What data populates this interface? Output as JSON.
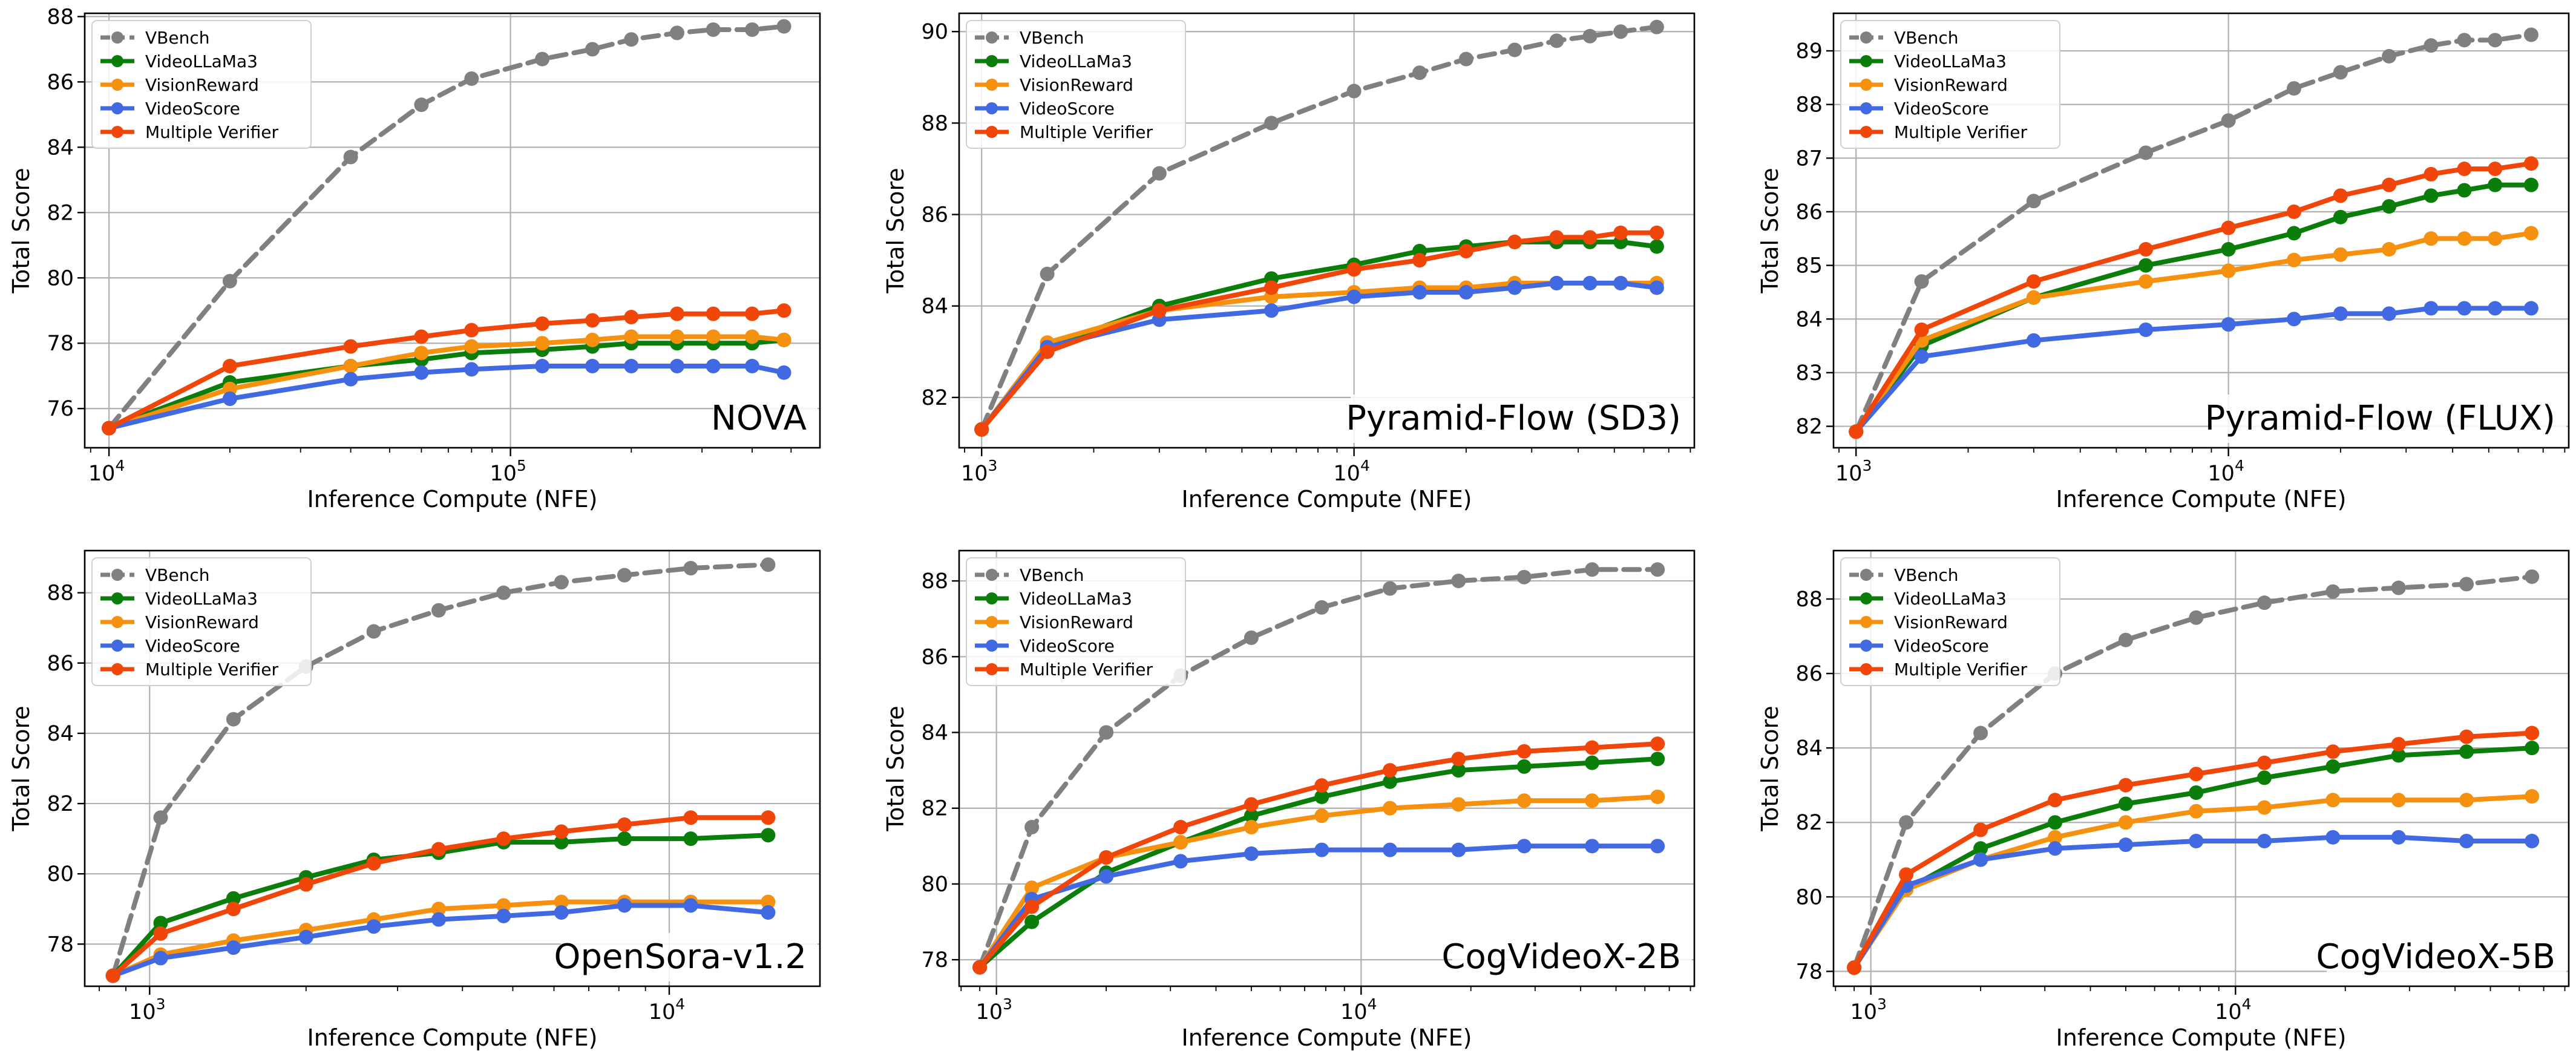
{
  "figure": {
    "legend_labels": [
      "VBench",
      "VideoLLaMa3",
      "VisionReward",
      "VideoScore",
      "Multiple Verifier"
    ],
    "xlabel": "Inference Compute (NFE)",
    "ylabel": "Total Score"
  },
  "colors": {
    "VBench": "#808080",
    "VideoLLaMa3": "#0a7d0a",
    "VisionReward": "#f5910f",
    "VideoScore": "#4169e1",
    "Multiple Verifier": "#f0460a"
  },
  "chart_data": [
    {
      "type": "line",
      "title": "NOVA",
      "xlabel": "Inference Compute (NFE)",
      "ylabel": "Total Score",
      "xscale": "log",
      "xlim": [
        8700,
        590000
      ],
      "ylim": [
        74.8,
        88.1
      ],
      "yticks": [
        76,
        78,
        80,
        82,
        84,
        86,
        88
      ],
      "xticks": [
        {
          "value": 10000,
          "base": "10",
          "exp": "4"
        },
        {
          "value": 100000,
          "base": "10",
          "exp": "5"
        }
      ],
      "legend": "top-left",
      "grid": true,
      "x": [
        10000,
        20000,
        40000,
        60000,
        80000,
        120000,
        160000,
        200000,
        260000,
        320000,
        400000,
        480000
      ],
      "series": [
        {
          "name": "VBench",
          "style": "dashed",
          "values": [
            75.4,
            79.9,
            83.7,
            85.3,
            86.1,
            86.7,
            87.0,
            87.3,
            87.5,
            87.6,
            87.6,
            87.7
          ]
        },
        {
          "name": "VideoLLaMa3",
          "values": [
            75.4,
            76.8,
            77.3,
            77.5,
            77.7,
            77.8,
            77.9,
            78.0,
            78.0,
            78.0,
            78.0,
            78.1
          ]
        },
        {
          "name": "VisionReward",
          "values": [
            75.4,
            76.6,
            77.3,
            77.7,
            77.9,
            78.0,
            78.1,
            78.2,
            78.2,
            78.2,
            78.2,
            78.1
          ]
        },
        {
          "name": "VideoScore",
          "values": [
            75.4,
            76.3,
            76.9,
            77.1,
            77.2,
            77.3,
            77.3,
            77.3,
            77.3,
            77.3,
            77.3,
            77.1
          ]
        },
        {
          "name": "Multiple Verifier",
          "values": [
            75.4,
            77.3,
            77.9,
            78.2,
            78.4,
            78.6,
            78.7,
            78.8,
            78.9,
            78.9,
            78.9,
            79.0
          ]
        }
      ]
    },
    {
      "type": "line",
      "title": "Pyramid-Flow (SD3)",
      "xlabel": "Inference Compute (NFE)",
      "ylabel": "Total Score",
      "xscale": "log",
      "xlim": [
        870,
        82000
      ],
      "ylim": [
        80.9,
        90.4
      ],
      "yticks": [
        82,
        84,
        86,
        88,
        90
      ],
      "xticks": [
        {
          "value": 1000,
          "base": "10",
          "exp": "3"
        },
        {
          "value": 10000,
          "base": "10",
          "exp": "4"
        }
      ],
      "legend": "top-left",
      "grid": true,
      "x": [
        1000,
        1500,
        3000,
        6000,
        10000,
        15000,
        20000,
        27000,
        35000,
        43000,
        52000,
        65000
      ],
      "series": [
        {
          "name": "VBench",
          "style": "dashed",
          "values": [
            81.3,
            84.7,
            86.9,
            88.0,
            88.7,
            89.1,
            89.4,
            89.6,
            89.8,
            89.9,
            90.0,
            90.1
          ]
        },
        {
          "name": "VideoLLaMa3",
          "values": [
            81.3,
            83.1,
            84.0,
            84.6,
            84.9,
            85.2,
            85.3,
            85.4,
            85.4,
            85.4,
            85.4,
            85.3
          ]
        },
        {
          "name": "VisionReward",
          "values": [
            81.3,
            83.2,
            83.9,
            84.2,
            84.3,
            84.4,
            84.4,
            84.5,
            84.5,
            84.5,
            84.5,
            84.5
          ]
        },
        {
          "name": "VideoScore",
          "values": [
            81.3,
            83.1,
            83.7,
            83.9,
            84.2,
            84.3,
            84.3,
            84.4,
            84.5,
            84.5,
            84.5,
            84.4
          ]
        },
        {
          "name": "Multiple Verifier",
          "values": [
            81.3,
            83.0,
            83.9,
            84.4,
            84.8,
            85.0,
            85.2,
            85.4,
            85.5,
            85.5,
            85.6,
            85.6
          ]
        }
      ]
    },
    {
      "type": "line",
      "title": "Pyramid-Flow (FLUX)",
      "xlabel": "Inference Compute (NFE)",
      "ylabel": "Total Score",
      "xscale": "log",
      "xlim": [
        870,
        82000
      ],
      "ylim": [
        81.6,
        89.7
      ],
      "yticks": [
        82,
        83,
        84,
        85,
        86,
        87,
        88,
        89
      ],
      "xticks": [
        {
          "value": 1000,
          "base": "10",
          "exp": "3"
        },
        {
          "value": 10000,
          "base": "10",
          "exp": "4"
        }
      ],
      "legend": "top-left",
      "grid": true,
      "x": [
        1000,
        1500,
        3000,
        6000,
        10000,
        15000,
        20000,
        27000,
        35000,
        43000,
        52000,
        65000
      ],
      "series": [
        {
          "name": "VBench",
          "style": "dashed",
          "values": [
            81.9,
            84.7,
            86.2,
            87.1,
            87.7,
            88.3,
            88.6,
            88.9,
            89.1,
            89.2,
            89.2,
            89.3
          ]
        },
        {
          "name": "VideoLLaMa3",
          "values": [
            81.9,
            83.5,
            84.4,
            85.0,
            85.3,
            85.6,
            85.9,
            86.1,
            86.3,
            86.4,
            86.5,
            86.5
          ]
        },
        {
          "name": "VisionReward",
          "values": [
            81.9,
            83.6,
            84.4,
            84.7,
            84.9,
            85.1,
            85.2,
            85.3,
            85.5,
            85.5,
            85.5,
            85.6
          ]
        },
        {
          "name": "VideoScore",
          "values": [
            81.9,
            83.3,
            83.6,
            83.8,
            83.9,
            84.0,
            84.1,
            84.1,
            84.2,
            84.2,
            84.2,
            84.2
          ]
        },
        {
          "name": "Multiple Verifier",
          "values": [
            81.9,
            83.8,
            84.7,
            85.3,
            85.7,
            86.0,
            86.3,
            86.5,
            86.7,
            86.8,
            86.8,
            86.9
          ]
        }
      ]
    },
    {
      "type": "line",
      "title": "OpenSora-v1.2",
      "xlabel": "Inference Compute (NFE)",
      "ylabel": "Total Score",
      "xscale": "log",
      "xlim": [
        750,
        19500
      ],
      "ylim": [
        76.8,
        89.2
      ],
      "yticks": [
        78,
        80,
        82,
        84,
        86,
        88
      ],
      "xticks": [
        {
          "value": 1000,
          "base": "10",
          "exp": "3"
        },
        {
          "value": 10000,
          "base": "10",
          "exp": "4"
        }
      ],
      "legend": "top-left",
      "grid": true,
      "x": [
        850,
        1050,
        1450,
        2000,
        2700,
        3600,
        4800,
        6200,
        8200,
        11000,
        15500
      ],
      "series": [
        {
          "name": "VBench",
          "style": "dashed",
          "values": [
            77.1,
            81.6,
            84.4,
            85.9,
            86.9,
            87.5,
            88.0,
            88.3,
            88.5,
            88.7,
            88.8
          ]
        },
        {
          "name": "VideoLLaMa3",
          "values": [
            77.1,
            78.6,
            79.3,
            79.9,
            80.4,
            80.6,
            80.9,
            80.9,
            81.0,
            81.0,
            81.1
          ]
        },
        {
          "name": "VisionReward",
          "values": [
            77.1,
            77.7,
            78.1,
            78.4,
            78.7,
            79.0,
            79.1,
            79.2,
            79.2,
            79.2,
            79.2
          ]
        },
        {
          "name": "VideoScore",
          "values": [
            77.1,
            77.6,
            77.9,
            78.2,
            78.5,
            78.7,
            78.8,
            78.9,
            79.1,
            79.1,
            78.9
          ]
        },
        {
          "name": "Multiple Verifier",
          "values": [
            77.1,
            78.3,
            79.0,
            79.7,
            80.3,
            80.7,
            81.0,
            81.2,
            81.4,
            81.6,
            81.6
          ]
        }
      ]
    },
    {
      "type": "line",
      "title": "CogVideoX-2B",
      "xlabel": "Inference Compute (NFE)",
      "ylabel": "Total Score",
      "xscale": "log",
      "xlim": [
        790,
        82000
      ],
      "ylim": [
        77.3,
        88.8
      ],
      "yticks": [
        78,
        80,
        82,
        84,
        86,
        88
      ],
      "xticks": [
        {
          "value": 1000,
          "base": "10",
          "exp": "3"
        },
        {
          "value": 10000,
          "base": "10",
          "exp": "4"
        }
      ],
      "legend": "top-left",
      "grid": true,
      "x": [
        900,
        1250,
        2000,
        3200,
        5000,
        7800,
        12000,
        18500,
        28000,
        43000,
        65000
      ],
      "series": [
        {
          "name": "VBench",
          "style": "dashed",
          "values": [
            77.8,
            81.5,
            84.0,
            85.5,
            86.5,
            87.3,
            87.8,
            88.0,
            88.1,
            88.3,
            88.3
          ]
        },
        {
          "name": "VideoLLaMa3",
          "values": [
            77.8,
            79.0,
            80.3,
            81.1,
            81.8,
            82.3,
            82.7,
            83.0,
            83.1,
            83.2,
            83.3
          ]
        },
        {
          "name": "VisionReward",
          "values": [
            77.8,
            79.9,
            80.7,
            81.1,
            81.5,
            81.8,
            82.0,
            82.1,
            82.2,
            82.2,
            82.3
          ]
        },
        {
          "name": "VideoScore",
          "values": [
            77.8,
            79.6,
            80.2,
            80.6,
            80.8,
            80.9,
            80.9,
            80.9,
            81.0,
            81.0,
            81.0
          ]
        },
        {
          "name": "Multiple Verifier",
          "values": [
            77.8,
            79.4,
            80.7,
            81.5,
            82.1,
            82.6,
            83.0,
            83.3,
            83.5,
            83.6,
            83.7
          ]
        }
      ]
    },
    {
      "type": "line",
      "title": "CogVideoX-5B",
      "xlabel": "Inference Compute (NFE)",
      "ylabel": "Total Score",
      "xscale": "log",
      "xlim": [
        790,
        82000
      ],
      "ylim": [
        77.6,
        89.3
      ],
      "yticks": [
        78,
        80,
        82,
        84,
        86,
        88
      ],
      "xticks": [
        {
          "value": 1000,
          "base": "10",
          "exp": "3"
        },
        {
          "value": 10000,
          "base": "10",
          "exp": "4"
        }
      ],
      "legend": "top-left",
      "grid": true,
      "x": [
        900,
        1250,
        2000,
        3200,
        5000,
        7800,
        12000,
        18500,
        28000,
        43000,
        65000
      ],
      "series": [
        {
          "name": "VBench",
          "style": "dashed",
          "values": [
            78.1,
            82.0,
            84.4,
            86.0,
            86.9,
            87.5,
            87.9,
            88.2,
            88.3,
            88.4,
            88.6
          ]
        },
        {
          "name": "VideoLLaMa3",
          "values": [
            78.1,
            80.2,
            81.3,
            82.0,
            82.5,
            82.8,
            83.2,
            83.5,
            83.8,
            83.9,
            84.0
          ]
        },
        {
          "name": "VisionReward",
          "values": [
            78.1,
            80.2,
            81.0,
            81.6,
            82.0,
            82.3,
            82.4,
            82.6,
            82.6,
            82.6,
            82.7
          ]
        },
        {
          "name": "VideoScore",
          "values": [
            78.1,
            80.3,
            81.0,
            81.3,
            81.4,
            81.5,
            81.5,
            81.6,
            81.6,
            81.5,
            81.5
          ]
        },
        {
          "name": "Multiple Verifier",
          "values": [
            78.1,
            80.6,
            81.8,
            82.6,
            83.0,
            83.3,
            83.6,
            83.9,
            84.1,
            84.3,
            84.4
          ]
        }
      ]
    }
  ]
}
